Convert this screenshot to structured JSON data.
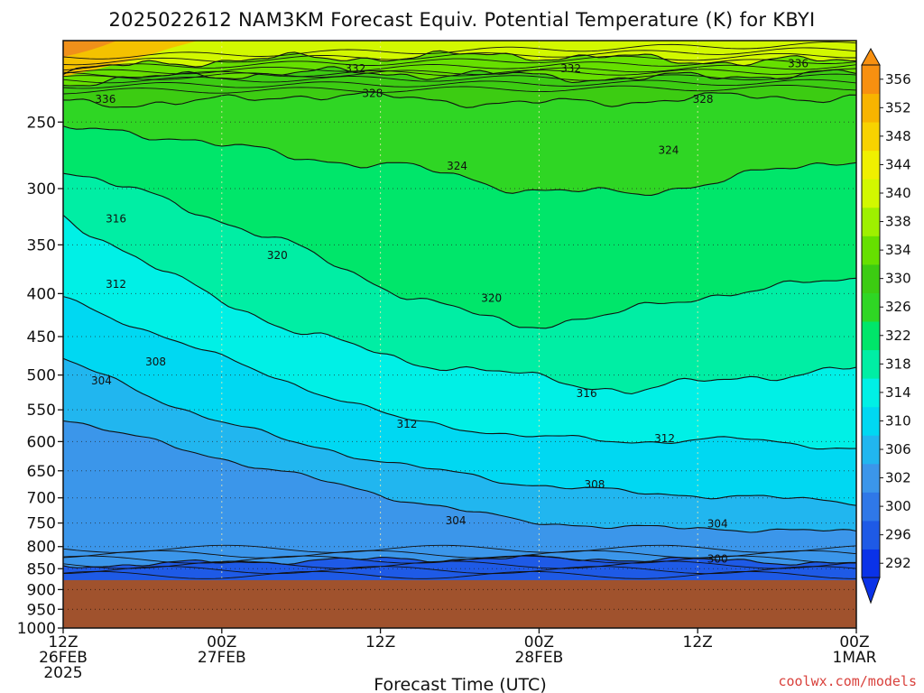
{
  "chart_data": {
    "type": "contour",
    "title": "2025022612 NAM3KM Forecast Equiv. Potential Temperature (K) for KBYI",
    "xlabel": "Forecast Time (UTC)",
    "ylabel": "",
    "y_scale": "log-pressure",
    "y_reversed": true,
    "ylim": [
      1000,
      200
    ],
    "y_ticks": [
      250,
      300,
      350,
      400,
      450,
      500,
      550,
      600,
      650,
      700,
      750,
      800,
      850,
      900,
      950,
      1000
    ],
    "y_tick_labels": [
      "250",
      "300",
      "350",
      "400",
      "450",
      "500",
      "550",
      "600",
      "650",
      "700",
      "750",
      "800",
      "850",
      "900",
      "950",
      "1000"
    ],
    "x_ticks": [
      {
        "hours": 0,
        "line1": "12Z",
        "line2": "26FEB",
        "line3": "2025"
      },
      {
        "hours": 12,
        "line1": "00Z",
        "line2": "27FEB",
        "line3": ""
      },
      {
        "hours": 24,
        "line1": "12Z",
        "line2": "",
        "line3": ""
      },
      {
        "hours": 36,
        "line1": "00Z",
        "line2": "28FEB",
        "line3": ""
      },
      {
        "hours": 48,
        "line1": "12Z",
        "line2": "",
        "line3": ""
      },
      {
        "hours": 60,
        "line1": "00Z",
        "line2": "1MAR",
        "line3": ""
      }
    ],
    "xlim": [
      0,
      60
    ],
    "grid": true,
    "ground_pressure_hpa": 877,
    "units": "K",
    "colorbar": {
      "position": "right",
      "labels": [
        "292",
        "296",
        "300",
        "302",
        "306",
        "310",
        "314",
        "318",
        "322",
        "326",
        "330",
        "334",
        "338",
        "340",
        "344",
        "348",
        "352",
        "356"
      ],
      "colors": [
        "#0a32e8",
        "#1e5ae6",
        "#2f78e8",
        "#3b96ea",
        "#21b6ef",
        "#00d8f2",
        "#00f0e6",
        "#00eea4",
        "#00e66a",
        "#2fd624",
        "#3ccc12",
        "#66e000",
        "#9ef000",
        "#d2f800",
        "#f0f000",
        "#f8d200",
        "#f8b400",
        "#f89010"
      ],
      "ground_color": "#a0522d"
    },
    "contour_levels": [
      {
        "value": 300,
        "pressure_profile": [
          843,
          838,
          832,
          828,
          826,
          828,
          832,
          838
        ]
      },
      {
        "value": 304,
        "pressure_profile": [
          563,
          610,
          655,
          703,
          745,
          760,
          762,
          770
        ]
      },
      {
        "value": 308,
        "pressure_profile": [
          478,
          545,
          600,
          640,
          672,
          690,
          698,
          708
        ]
      },
      {
        "value": 312,
        "pressure_profile": [
          405,
          455,
          510,
          565,
          590,
          600,
          596,
          612
        ]
      },
      {
        "value": 316,
        "pressure_profile": [
          322,
          385,
          440,
          480,
          500,
          522,
          503,
          492
        ]
      },
      {
        "value": 320,
        "pressure_profile": [
          286,
          312,
          350,
          400,
          438,
          420,
          395,
          386
        ]
      },
      {
        "value": 324,
        "pressure_profile": [
          255,
          260,
          275,
          282,
          300,
          305,
          290,
          276
        ]
      },
      {
        "value": 328,
        "pressure_profile": [
          236,
          238,
          232,
          234,
          238,
          236,
          233,
          234
        ]
      },
      {
        "value": 332,
        "pressure_profile": [
          224,
          221,
          218,
          219,
          220,
          222,
          220,
          219
        ]
      },
      {
        "value": 336,
        "pressure_profile": [
          218,
          212,
          210,
          209,
          208,
          210,
          212,
          211
        ]
      }
    ],
    "contour_labels": [
      {
        "text": "336",
        "hours": 3.2,
        "pressure": 235
      },
      {
        "text": "332",
        "hours": 22.1,
        "pressure": 216
      },
      {
        "text": "328",
        "hours": 23.4,
        "pressure": 231
      },
      {
        "text": "332",
        "hours": 38.4,
        "pressure": 216
      },
      {
        "text": "328",
        "hours": 48.4,
        "pressure": 235
      },
      {
        "text": "336",
        "hours": 55.6,
        "pressure": 213
      },
      {
        "text": "324",
        "hours": 29.8,
        "pressure": 282
      },
      {
        "text": "324",
        "hours": 45.8,
        "pressure": 270
      },
      {
        "text": "316",
        "hours": 4.0,
        "pressure": 326
      },
      {
        "text": "320",
        "hours": 16.2,
        "pressure": 360
      },
      {
        "text": "312",
        "hours": 4.0,
        "pressure": 390
      },
      {
        "text": "320",
        "hours": 32.4,
        "pressure": 405
      },
      {
        "text": "308",
        "hours": 7.0,
        "pressure": 482
      },
      {
        "text": "304",
        "hours": 2.9,
        "pressure": 508
      },
      {
        "text": "316",
        "hours": 39.6,
        "pressure": 526
      },
      {
        "text": "312",
        "hours": 26.0,
        "pressure": 572
      },
      {
        "text": "312",
        "hours": 45.5,
        "pressure": 595
      },
      {
        "text": "308",
        "hours": 40.2,
        "pressure": 675
      },
      {
        "text": "304",
        "hours": 29.7,
        "pressure": 745
      },
      {
        "text": "304",
        "hours": 49.5,
        "pressure": 752
      },
      {
        "text": "300",
        "hours": 49.5,
        "pressure": 828
      }
    ]
  },
  "credit": "coolwx.com/models"
}
